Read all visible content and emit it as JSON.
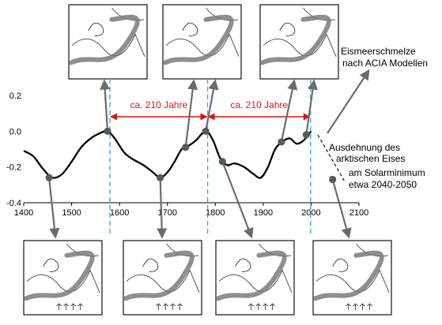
{
  "chart_data": {
    "type": "line",
    "xlim": [
      1400,
      2100
    ],
    "ylim": [
      -0.4,
      0.2
    ],
    "x_ticks": [
      1400,
      1500,
      1600,
      1700,
      1800,
      1900,
      2000,
      2100
    ],
    "y_ticks": [
      0.2,
      0.0,
      -0.2,
      -0.4
    ],
    "x_tick_labels": [
      "1400",
      "1500",
      "1600",
      "1700",
      "1800",
      "1900",
      "2000",
      "2100"
    ],
    "y_tick_labels": [
      "0.2",
      "0.0",
      "-0.2",
      "-0.4"
    ],
    "grid": false,
    "series": [
      {
        "x": [
          1400,
          1420,
          1440,
          1460,
          1480,
          1500,
          1520,
          1540,
          1560,
          1575,
          1590,
          1610,
          1630,
          1650,
          1670,
          1685,
          1700,
          1715,
          1730,
          1745,
          1760,
          1780,
          1795,
          1810,
          1825,
          1840,
          1860,
          1880,
          1895,
          1910,
          1925,
          1940,
          1955,
          1970,
          1985,
          2000
        ],
        "values": [
          -0.11,
          -0.14,
          -0.21,
          -0.26,
          -0.24,
          -0.17,
          -0.09,
          -0.04,
          -0.01,
          0.0,
          -0.04,
          -0.12,
          -0.16,
          -0.19,
          -0.23,
          -0.26,
          -0.23,
          -0.17,
          -0.1,
          -0.08,
          -0.05,
          0.0,
          -0.05,
          -0.15,
          -0.19,
          -0.18,
          -0.2,
          -0.24,
          -0.26,
          -0.2,
          -0.1,
          -0.06,
          -0.04,
          -0.07,
          -0.05,
          0.0
        ]
      }
    ],
    "markers": [
      {
        "x": 1453,
        "y": -0.26
      },
      {
        "x": 1575,
        "y": 0.0
      },
      {
        "x": 1685,
        "y": -0.26
      },
      {
        "x": 1738,
        "y": -0.09
      },
      {
        "x": 1780,
        "y": 0.0
      },
      {
        "x": 1815,
        "y": -0.17
      },
      {
        "x": 1938,
        "y": -0.06
      },
      {
        "x": 1990,
        "y": -0.02
      },
      {
        "x": 2045,
        "y": -0.27
      }
    ],
    "vertical_lines_x": [
      1580,
      1784,
      1999
    ],
    "spans": [
      {
        "from": 1580,
        "to": 1784,
        "label": "ca. 210 Jahre"
      },
      {
        "from": 1784,
        "to": 1999,
        "label": "ca. 210 Jahre"
      }
    ],
    "annotations": [
      "Eismeerschmelze nach ACIA Modellen",
      "Ausdehnung des arktischen Eises",
      "am Solarminimum etwa 2040-2050"
    ]
  },
  "annotation_text": {
    "melt_line1": "Eismeerschmelze",
    "melt_line2": "nach ACIA Modellen",
    "ice_line1": "Ausdehnung des",
    "ice_line2": "arktischen Eises",
    "solar_line1": "am Solarminimum",
    "solar_line2": "etwa 2040-2050"
  },
  "maps": {
    "top_count": 3,
    "bottom_count": 4
  },
  "colors": {
    "curve": "#000000",
    "marker": "#5a5a5a",
    "arrow": "#6b6b6b",
    "vline": "#3aa3e6",
    "span_arrow": "#e01010",
    "span_text": "#e01010",
    "axis": "#000000",
    "map_border": "#111111",
    "map_stripe": "#7a7a7a",
    "map_line": "#444444"
  }
}
